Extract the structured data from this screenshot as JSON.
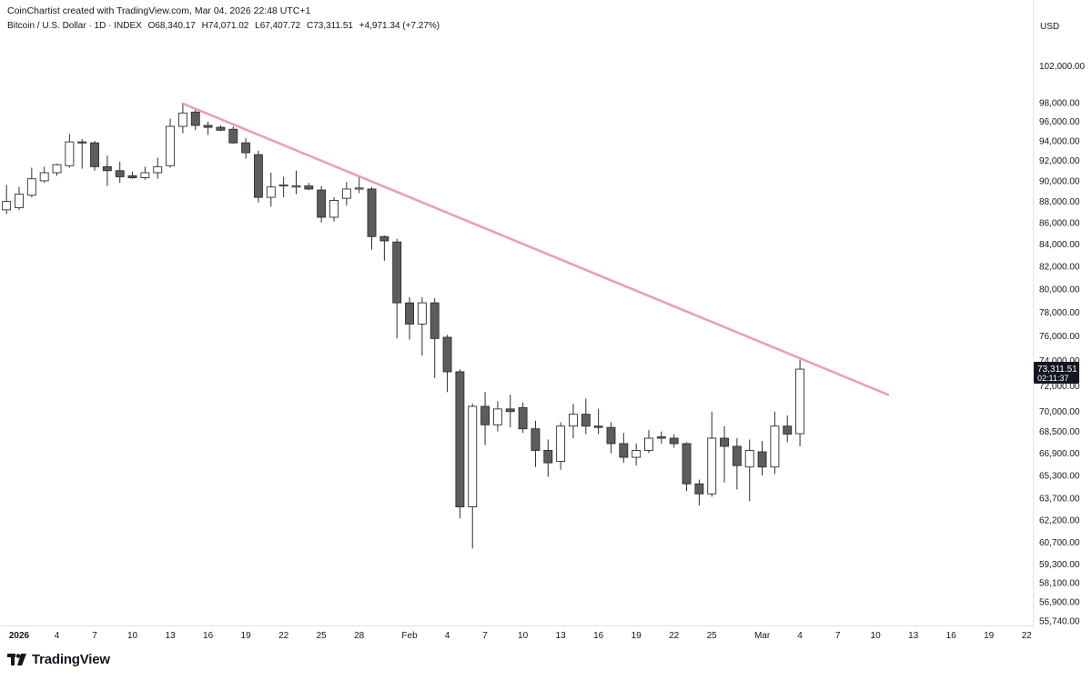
{
  "header": {
    "credit": "CoinChartist created with TradingView.com, Mar 04, 2026 22:48 UTC+1",
    "symbol": "Bitcoin / U.S. Dollar · 1D · INDEX",
    "open": "O68,340.17",
    "high": "H74,071.02",
    "low": "L67,407.72",
    "close": "C73,311.51",
    "change": "+4,971.34 (+7.27%)"
  },
  "currency": "USD",
  "logo_text": "TradingView",
  "colors": {
    "bull_fill": "#ffffff",
    "bear_fill": "#5d5d5d",
    "wick": "#2a2e39",
    "trendline": "#e8a0b4",
    "last_price_bg": "#131722",
    "text": "#131722"
  },
  "chart_data": {
    "type": "candlestick",
    "scale": "log",
    "y_tick_labels": [
      "102,000.00",
      "98,000.00",
      "96,000.00",
      "94,000.00",
      "92,000.00",
      "90,000.00",
      "88,000.00",
      "86,000.00",
      "84,000.00",
      "82,000.00",
      "80,000.00",
      "78,000.00",
      "76,000.00",
      "74,000.00",
      "72,000.00",
      "70,000.00",
      "68,500.00",
      "66,900.00",
      "65,300.00",
      "63,700.00",
      "62,200.00",
      "60,700.00",
      "59,300.00",
      "58,100.00",
      "56,900.00",
      "55,740.00"
    ],
    "x_tick_labels": [
      "2026",
      "4",
      "7",
      "10",
      "13",
      "16",
      "19",
      "22",
      "25",
      "28",
      "Feb",
      "4",
      "7",
      "10",
      "13",
      "16",
      "19",
      "22",
      "25",
      "Mar",
      "4",
      "7",
      "10",
      "13",
      "16",
      "19",
      "22"
    ],
    "last_price": {
      "value": "73,311.51",
      "countdown": "02:11:37"
    },
    "candles": [
      {
        "date": "2025-12-31",
        "o": 87200,
        "h": 89600,
        "l": 86800,
        "c": 88000
      },
      {
        "date": "2026-01-01",
        "o": 87400,
        "h": 89400,
        "l": 87200,
        "c": 88700
      },
      {
        "date": "2026-01-02",
        "o": 88600,
        "h": 91300,
        "l": 88400,
        "c": 90200
      },
      {
        "date": "2026-01-03",
        "o": 90000,
        "h": 91400,
        "l": 89800,
        "c": 90800
      },
      {
        "date": "2026-01-04",
        "o": 90800,
        "h": 91700,
        "l": 90500,
        "c": 91600
      },
      {
        "date": "2026-01-05",
        "o": 91500,
        "h": 94700,
        "l": 91300,
        "c": 93900
      },
      {
        "date": "2026-01-06",
        "o": 93900,
        "h": 94200,
        "l": 91200,
        "c": 93800
      },
      {
        "date": "2026-01-07",
        "o": 93800,
        "h": 94000,
        "l": 91000,
        "c": 91400
      },
      {
        "date": "2026-01-08",
        "o": 91400,
        "h": 92500,
        "l": 89500,
        "c": 91000
      },
      {
        "date": "2026-01-09",
        "o": 91000,
        "h": 91900,
        "l": 89800,
        "c": 90400
      },
      {
        "date": "2026-01-10",
        "o": 90500,
        "h": 90900,
        "l": 90200,
        "c": 90300
      },
      {
        "date": "2026-01-11",
        "o": 90300,
        "h": 91400,
        "l": 90100,
        "c": 90800
      },
      {
        "date": "2026-01-12",
        "o": 90800,
        "h": 92300,
        "l": 90200,
        "c": 91400
      },
      {
        "date": "2026-01-13",
        "o": 91500,
        "h": 96300,
        "l": 91300,
        "c": 95500
      },
      {
        "date": "2026-01-14",
        "o": 95500,
        "h": 97900,
        "l": 94800,
        "c": 96900
      },
      {
        "date": "2026-01-15",
        "o": 97000,
        "h": 97300,
        "l": 95100,
        "c": 95600
      },
      {
        "date": "2026-01-16",
        "o": 95600,
        "h": 96000,
        "l": 94600,
        "c": 95400
      },
      {
        "date": "2026-01-17",
        "o": 95400,
        "h": 95600,
        "l": 95000,
        "c": 95100
      },
      {
        "date": "2026-01-18",
        "o": 95200,
        "h": 95500,
        "l": 93700,
        "c": 93800
      },
      {
        "date": "2026-01-19",
        "o": 93800,
        "h": 94300,
        "l": 92200,
        "c": 92800
      },
      {
        "date": "2026-01-20",
        "o": 92600,
        "h": 93000,
        "l": 87900,
        "c": 88400
      },
      {
        "date": "2026-01-21",
        "o": 88400,
        "h": 90800,
        "l": 87500,
        "c": 89400
      },
      {
        "date": "2026-01-22",
        "o": 89500,
        "h": 90400,
        "l": 88400,
        "c": 89600
      },
      {
        "date": "2026-01-23",
        "o": 89500,
        "h": 91000,
        "l": 88700,
        "c": 89500
      },
      {
        "date": "2026-01-24",
        "o": 89500,
        "h": 89800,
        "l": 89100,
        "c": 89200
      },
      {
        "date": "2026-01-25",
        "o": 89100,
        "h": 89500,
        "l": 86000,
        "c": 86500
      },
      {
        "date": "2026-01-26",
        "o": 86500,
        "h": 88400,
        "l": 86100,
        "c": 88100
      },
      {
        "date": "2026-01-27",
        "o": 88300,
        "h": 89900,
        "l": 87600,
        "c": 89200
      },
      {
        "date": "2026-01-28",
        "o": 89200,
        "h": 90400,
        "l": 88800,
        "c": 89300
      },
      {
        "date": "2026-01-29",
        "o": 89200,
        "h": 89400,
        "l": 83500,
        "c": 84700
      },
      {
        "date": "2026-01-30",
        "o": 84700,
        "h": 84800,
        "l": 82500,
        "c": 84300
      },
      {
        "date": "2026-01-31",
        "o": 84200,
        "h": 84500,
        "l": 75800,
        "c": 78800
      },
      {
        "date": "2026-02-01",
        "o": 78800,
        "h": 79300,
        "l": 75700,
        "c": 77000
      },
      {
        "date": "2026-02-02",
        "o": 77000,
        "h": 79300,
        "l": 74400,
        "c": 78800
      },
      {
        "date": "2026-02-03",
        "o": 78800,
        "h": 79200,
        "l": 72600,
        "c": 75800
      },
      {
        "date": "2026-02-04",
        "o": 75900,
        "h": 76100,
        "l": 71500,
        "c": 73100
      },
      {
        "date": "2026-02-05",
        "o": 73100,
        "h": 73300,
        "l": 62300,
        "c": 63100
      },
      {
        "date": "2026-02-06",
        "o": 63100,
        "h": 70600,
        "l": 60300,
        "c": 70400
      },
      {
        "date": "2026-02-07",
        "o": 70400,
        "h": 71500,
        "l": 67500,
        "c": 69000
      },
      {
        "date": "2026-02-08",
        "o": 69000,
        "h": 70800,
        "l": 68500,
        "c": 70200
      },
      {
        "date": "2026-02-09",
        "o": 70200,
        "h": 71300,
        "l": 68800,
        "c": 70000
      },
      {
        "date": "2026-02-10",
        "o": 70300,
        "h": 70700,
        "l": 68400,
        "c": 68700
      },
      {
        "date": "2026-02-11",
        "o": 68700,
        "h": 69300,
        "l": 65900,
        "c": 67100
      },
      {
        "date": "2026-02-12",
        "o": 67100,
        "h": 67900,
        "l": 65200,
        "c": 66200
      },
      {
        "date": "2026-02-13",
        "o": 66300,
        "h": 69200,
        "l": 65700,
        "c": 68900
      },
      {
        "date": "2026-02-14",
        "o": 68900,
        "h": 70600,
        "l": 68000,
        "c": 69800
      },
      {
        "date": "2026-02-15",
        "o": 69800,
        "h": 71000,
        "l": 68300,
        "c": 68900
      },
      {
        "date": "2026-02-16",
        "o": 68900,
        "h": 70200,
        "l": 68300,
        "c": 68800
      },
      {
        "date": "2026-02-17",
        "o": 68800,
        "h": 69200,
        "l": 66900,
        "c": 67600
      },
      {
        "date": "2026-02-18",
        "o": 67600,
        "h": 68400,
        "l": 66200,
        "c": 66600
      },
      {
        "date": "2026-02-19",
        "o": 66600,
        "h": 67600,
        "l": 66000,
        "c": 67100
      },
      {
        "date": "2026-02-20",
        "o": 67100,
        "h": 68600,
        "l": 66900,
        "c": 68000
      },
      {
        "date": "2026-02-21",
        "o": 68100,
        "h": 68500,
        "l": 67600,
        "c": 68000
      },
      {
        "date": "2026-02-22",
        "o": 68000,
        "h": 68300,
        "l": 67300,
        "c": 67600
      },
      {
        "date": "2026-02-23",
        "o": 67600,
        "h": 67700,
        "l": 64200,
        "c": 64700
      },
      {
        "date": "2026-02-24",
        "o": 64700,
        "h": 65000,
        "l": 63200,
        "c": 64000
      },
      {
        "date": "2026-02-25",
        "o": 64000,
        "h": 70000,
        "l": 63800,
        "c": 68000
      },
      {
        "date": "2026-02-26",
        "o": 68000,
        "h": 68900,
        "l": 64800,
        "c": 67400
      },
      {
        "date": "2026-02-27",
        "o": 67400,
        "h": 68000,
        "l": 64300,
        "c": 66000
      },
      {
        "date": "2026-02-28",
        "o": 65900,
        "h": 67900,
        "l": 63500,
        "c": 67100
      },
      {
        "date": "2026-03-01",
        "o": 67000,
        "h": 67800,
        "l": 65300,
        "c": 65900
      },
      {
        "date": "2026-03-02",
        "o": 65900,
        "h": 70000,
        "l": 65400,
        "c": 68900
      },
      {
        "date": "2026-03-03",
        "o": 68900,
        "h": 69700,
        "l": 67700,
        "c": 68300
      },
      {
        "date": "2026-03-04",
        "o": 68340.17,
        "h": 74071.02,
        "l": 67407.72,
        "c": 73311.51
      }
    ],
    "trendline": {
      "from": {
        "date": "2026-01-14",
        "price": 97900
      },
      "to": {
        "date": "2026-03-11",
        "price": 71300
      }
    }
  }
}
